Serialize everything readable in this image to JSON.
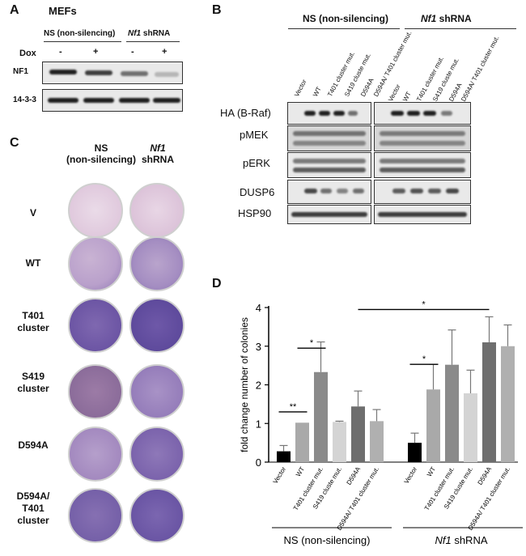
{
  "panel_a": {
    "letter": "A",
    "title": "MEFs",
    "group1": "NS (non-silencing)",
    "group2_italic": "Nf1",
    "group2_rest": " shRNA",
    "dox_label": "Dox",
    "dox_values": [
      "-",
      "+",
      "-",
      "+"
    ],
    "rows": [
      "NF1",
      "14-3-3"
    ]
  },
  "panel_b": {
    "letter": "B",
    "group1": "NS (non-silencing)",
    "group2_italic": "Nf1",
    "group2_rest": " shRNA",
    "lanes": [
      "Vector",
      "WT",
      "T401 cluster mut.",
      "S419 cluste mut.",
      "D594A",
      "D594A/ T401 cluster mut."
    ],
    "rows": [
      "HA (B-Raf)",
      "pMEK",
      "pERK",
      "DUSP6",
      "HSP90"
    ]
  },
  "panel_c": {
    "letter": "C",
    "col1_line1": "NS",
    "col1_line2": "(non-silencing)",
    "col2_italic": "Nf1",
    "col2_line2": "shRNA",
    "rows": [
      {
        "line1": "V",
        "line2": ""
      },
      {
        "line1": "WT",
        "line2": ""
      },
      {
        "line1": "T401",
        "line2": "cluster"
      },
      {
        "line1": "S419",
        "line2": "cluster"
      },
      {
        "line1": "D594A",
        "line2": ""
      },
      {
        "line1": "D594A/",
        "line2": "T401",
        "line3": "cluster"
      }
    ],
    "colors": {
      "v": "#e4cfe0",
      "wt": "#d8bdd8",
      "dense": "#6e58a8",
      "mid": "#8d6fae"
    }
  },
  "panel_d": {
    "letter": "D",
    "significance": [
      "**",
      "*",
      "*",
      "*"
    ],
    "group1_label": "NS (non-silencing)",
    "group2_italic": "Nf1",
    "group2_rest": " shRNA"
  },
  "chart_data": {
    "type": "bar",
    "ylabel": "fold change number of colonies",
    "ylim": [
      0,
      4
    ],
    "yticks": [
      "0",
      "1",
      "2",
      "3",
      "4"
    ],
    "categories": [
      "Vector",
      "WT",
      "T401 cluster mut.",
      "S419 cluste mut.",
      "D594A",
      "D594A/ T401 cluster mut."
    ],
    "groups": [
      "NS (non-silencing)",
      "Nf1 shRNA"
    ],
    "series": [
      {
        "values": [
          0.28,
          1.02,
          2.33,
          1.04,
          1.44,
          1.06
        ],
        "errors": [
          0.15,
          0.0,
          0.78,
          0.02,
          0.4,
          0.3
        ]
      },
      {
        "values": [
          0.5,
          1.88,
          2.52,
          1.78,
          3.1,
          3.0
        ],
        "errors": [
          0.25,
          0.65,
          0.9,
          0.6,
          0.66,
          0.55
        ]
      }
    ],
    "bar_colors": [
      "#000000",
      "#a9a9a9",
      "#8a8a8a",
      "#d4d4d4",
      "#6e6e6e",
      "#b0b0b0"
    ]
  }
}
